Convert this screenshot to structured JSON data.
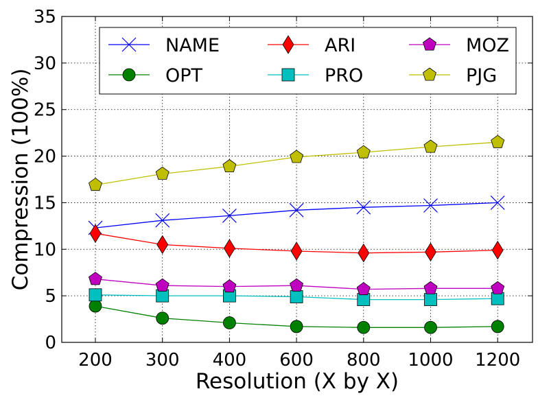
{
  "chart_data": {
    "type": "line",
    "xlabel": "Resolution (X by X)",
    "ylabel": "Compression (100%)",
    "categories": [
      "200",
      "300",
      "400",
      "600",
      "800",
      "1000",
      "1200"
    ],
    "ylim": [
      0,
      35
    ],
    "yticks": [
      "0",
      "5",
      "10",
      "15",
      "20",
      "25",
      "30",
      "35"
    ],
    "grid": true,
    "legend_position": "top",
    "legend_columns": 3,
    "series": [
      {
        "name": "NAME",
        "color": "#0000ff",
        "marker": "x",
        "values": [
          12.3,
          13.1,
          13.6,
          14.2,
          14.5,
          14.7,
          15.0
        ]
      },
      {
        "name": "OPT",
        "color": "#008000",
        "marker": "circle",
        "values": [
          3.9,
          2.6,
          2.1,
          1.7,
          1.6,
          1.6,
          1.7
        ]
      },
      {
        "name": "ARI",
        "color": "#ff0000",
        "marker": "diamond",
        "values": [
          11.7,
          10.5,
          10.1,
          9.8,
          9.6,
          9.7,
          9.9
        ]
      },
      {
        "name": "PRO",
        "color": "#00bfbf",
        "marker": "square",
        "values": [
          5.1,
          5.0,
          5.0,
          4.9,
          4.6,
          4.6,
          4.7
        ]
      },
      {
        "name": "MOZ",
        "color": "#bf00bf",
        "marker": "pentagon",
        "values": [
          6.8,
          6.1,
          6.0,
          6.1,
          5.7,
          5.8,
          5.8
        ]
      },
      {
        "name": "PJG",
        "color": "#bfbf00",
        "marker": "pentagon",
        "values": [
          16.9,
          18.1,
          18.9,
          19.9,
          20.4,
          21.0,
          21.5
        ]
      }
    ]
  }
}
